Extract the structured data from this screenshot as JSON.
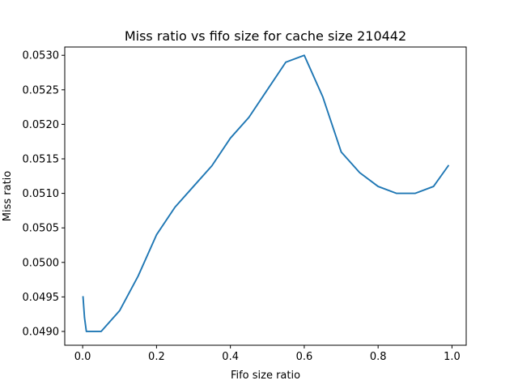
{
  "chart_data": {
    "type": "line",
    "title": "Miss ratio vs fifo size for cache size 210442",
    "xlabel": "Fifo size ratio",
    "ylabel": "Miss ratio",
    "xlim": [
      -0.0485,
      1.0385
    ],
    "ylim": [
      0.0488,
      0.05312
    ],
    "xticks": [
      0.0,
      0.2,
      0.4,
      0.6,
      0.8,
      1.0
    ],
    "xtick_labels": [
      "0.0",
      "0.2",
      "0.4",
      "0.6",
      "0.8",
      "1.0"
    ],
    "yticks": [
      0.049,
      0.0495,
      0.05,
      0.0505,
      0.051,
      0.0515,
      0.052,
      0.0525,
      0.053
    ],
    "ytick_labels": [
      "0.0490",
      "0.0495",
      "0.0500",
      "0.0505",
      "0.0510",
      "0.0515",
      "0.0520",
      "0.0525",
      "0.0530"
    ],
    "grid": false,
    "series": [
      {
        "color": "#1f77b4",
        "x": [
          0.001,
          0.005,
          0.01,
          0.05,
          0.1,
          0.15,
          0.2,
          0.25,
          0.3,
          0.35,
          0.4,
          0.45,
          0.5,
          0.55,
          0.6,
          0.65,
          0.7,
          0.75,
          0.8,
          0.85,
          0.9,
          0.95,
          0.99
        ],
        "y": [
          0.0495,
          0.0492,
          0.049,
          0.049,
          0.0493,
          0.0498,
          0.0504,
          0.0508,
          0.0511,
          0.0514,
          0.0518,
          0.0521,
          0.0525,
          0.0529,
          0.053,
          0.0524,
          0.0516,
          0.0513,
          0.0511,
          0.051,
          0.051,
          0.0511,
          0.0514
        ]
      }
    ]
  }
}
